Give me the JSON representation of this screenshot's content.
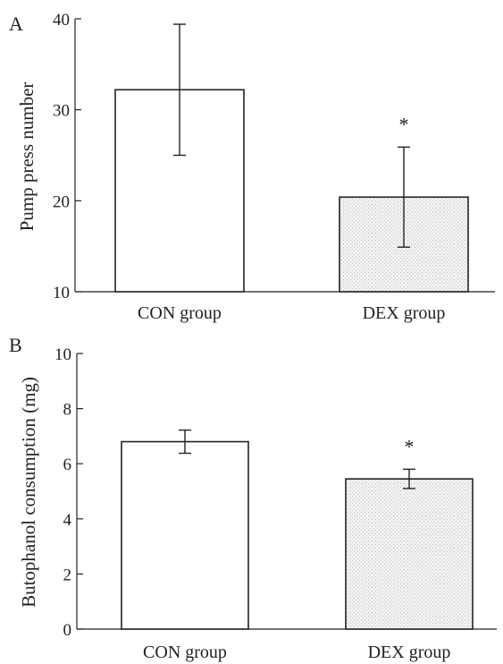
{
  "colors": {
    "axis": "#222222",
    "bar_con": "#ffffff",
    "bar_dex_pattern": "stipple"
  },
  "chart_data": [
    {
      "type": "bar",
      "panel_label": "A",
      "categories": [
        "CON group",
        "DEX group"
      ],
      "values": [
        32.2,
        20.4
      ],
      "errors": [
        7.2,
        5.5
      ],
      "significance": [
        "",
        "*"
      ],
      "ylabel": "Pump press number",
      "ylim": [
        10,
        40
      ],
      "yticks": [
        10,
        20,
        30,
        40
      ],
      "bar_colors": [
        "#ffffff",
        "stipple"
      ],
      "grid": false
    },
    {
      "type": "bar",
      "panel_label": "B",
      "categories": [
        "CON group",
        "DEX group"
      ],
      "values": [
        6.8,
        5.45
      ],
      "errors": [
        0.42,
        0.35
      ],
      "significance": [
        "",
        "*"
      ],
      "ylabel": "Butophanol consumption (mg)",
      "ylim": [
        0,
        10
      ],
      "yticks": [
        0,
        2,
        4,
        6,
        8,
        10
      ],
      "bar_colors": [
        "#ffffff",
        "stipple"
      ],
      "grid": false
    }
  ]
}
